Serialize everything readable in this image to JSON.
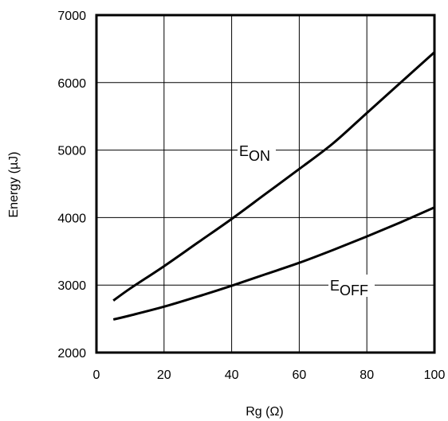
{
  "chart_data": {
    "type": "line",
    "xlabel": "Rg (Ω)",
    "ylabel": "Energy (µJ)",
    "xlim": [
      0,
      100
    ],
    "ylim": [
      2000,
      7000
    ],
    "x_ticks": [
      "0",
      "20",
      "40",
      "60",
      "80",
      "100"
    ],
    "y_ticks": [
      "2000",
      "3000",
      "4000",
      "5000",
      "6000",
      "7000"
    ],
    "grid": true,
    "series": [
      {
        "name_main": "E",
        "name_sub": "ON",
        "x": [
          5,
          10,
          20,
          30,
          40,
          50,
          60,
          70,
          80,
          90,
          100
        ],
        "y": [
          2770,
          2950,
          3280,
          3630,
          3980,
          4350,
          4720,
          5100,
          5550,
          6000,
          6450
        ]
      },
      {
        "name_main": "E",
        "name_sub": "OFF",
        "x": [
          5,
          10,
          20,
          30,
          40,
          50,
          60,
          70,
          80,
          90,
          100
        ],
        "y": [
          2490,
          2550,
          2680,
          2830,
          2990,
          3160,
          3330,
          3520,
          3720,
          3930,
          4150
        ]
      }
    ]
  }
}
